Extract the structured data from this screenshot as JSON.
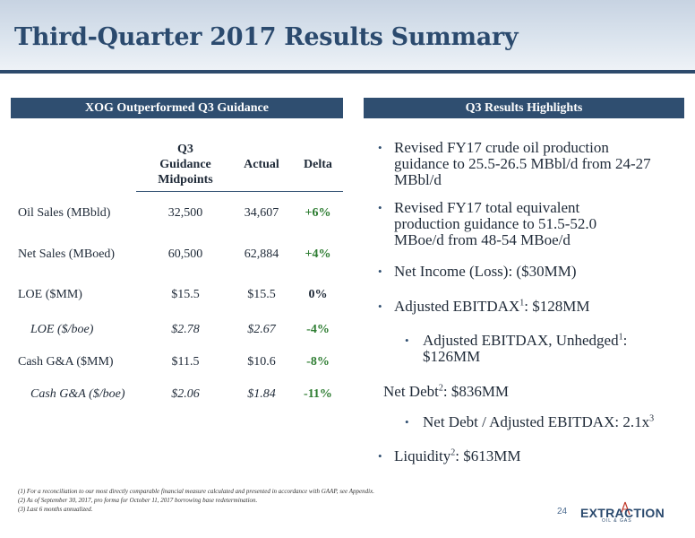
{
  "title": "Third-Quarter 2017 Results Summary",
  "left_section": "XOG Outperformed Q3 Guidance",
  "right_section": "Q3 Results Highlights",
  "table": {
    "headers": {
      "guidance": [
        "Q3",
        "Guidance",
        "Midpoints"
      ],
      "actual": "Actual",
      "delta": "Delta"
    },
    "rows": [
      {
        "label": "Oil Sales (MBbld)",
        "guidance": "32,500",
        "actual": "34,607",
        "delta": "+6%"
      },
      {
        "label": "Net Sales (MBoed)",
        "guidance": "60,500",
        "actual": "62,884",
        "delta": "+4%"
      },
      {
        "label": "LOE ($MM)",
        "guidance": "$15.5",
        "actual": "$15.5",
        "delta": "0%"
      },
      {
        "label": "LOE ($/boe)",
        "guidance": "$2.78",
        "actual": "$2.67",
        "delta": "-4%"
      },
      {
        "label": "Cash G&A ($MM)",
        "guidance": "$11.5",
        "actual": "$10.6",
        "delta": "-8%"
      },
      {
        "label": "Cash G&A ($/boe)",
        "guidance": "$2.06",
        "actual": "$1.84",
        "delta": "-11%"
      }
    ]
  },
  "highlights": {
    "h1": [
      "Revised FY17 crude oil production",
      "guidance to 25.5-26.5 MBbl/d from 24-27",
      "MBbl/d"
    ],
    "h2": [
      "Revised FY17 total equivalent",
      "production guidance to 51.5-52.0",
      "MBoe/d from 48-54 MBoe/d"
    ],
    "h3": "Net Income (Loss): ($30MM)",
    "h4_pre": "Adjusted EBITDAX",
    "h4_sup": "1",
    "h4_post": ": $128MM",
    "h5_pre": "Adjusted EBITDAX, Unhedged",
    "h5_sup": "1",
    "h5_post": ":",
    "h5_line2": "$126MM",
    "h6_pre": "Net Debt",
    "h6_sup": "2",
    "h6_post": ": $836MM",
    "h7_pre": "Net Debt / Adjusted EBITDAX: 2.1x",
    "h7_sup": "3",
    "h8_pre": "Liquidity",
    "h8_sup": "2",
    "h8_post": ": $613MM"
  },
  "bullet_glyph": "•",
  "footnotes": [
    "(1) For a reconciliation to our most directly comparable financial measure calculated and presented in accordance with GAAP, see Appendix.",
    "(2) As of September 30, 2017, pro forma for October 11, 2017 borrowing base redetermination.",
    "(3) Last 6 months annualized."
  ],
  "page_number": "24",
  "logo": {
    "text": "EXTRACTION",
    "sub": "OIL & GAS"
  },
  "colors": {
    "navy": "#2f4e70",
    "positive": "#2e7d32"
  }
}
